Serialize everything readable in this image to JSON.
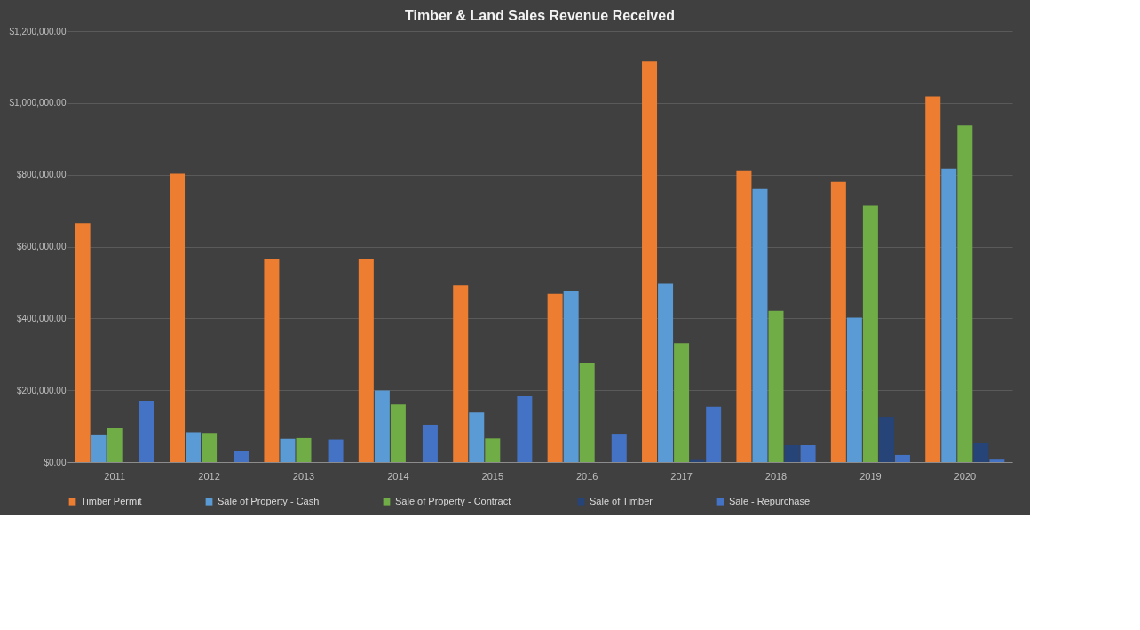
{
  "chart_data": {
    "type": "bar",
    "title": "Timber & Land Sales Revenue Received",
    "categories": [
      "2011",
      "2012",
      "2013",
      "2014",
      "2015",
      "2016",
      "2017",
      "2018",
      "2019",
      "2020"
    ],
    "series": [
      {
        "name": "Timber Permit",
        "color": "#ed7d31",
        "values": [
          665000,
          803000,
          566000,
          564000,
          492000,
          468000,
          1115000,
          812000,
          780000,
          1018000
        ]
      },
      {
        "name": "Sale of Property - Cash",
        "color": "#5b9bd5",
        "values": [
          77000,
          83000,
          65000,
          199000,
          138000,
          476000,
          496000,
          760000,
          402000,
          817000
        ]
      },
      {
        "name": "Sale of Property -  Contract",
        "color": "#70ad47",
        "values": [
          94000,
          81000,
          67000,
          160000,
          66000,
          277000,
          331000,
          421000,
          714000,
          937000
        ]
      },
      {
        "name": "Sale of Timber",
        "color": "#264478",
        "values": [
          null,
          null,
          0,
          null,
          null,
          0,
          6000,
          47000,
          126000,
          53000
        ]
      },
      {
        "name": "Sale - Repurchase",
        "color": "#4472c4",
        "values": [
          171000,
          32000,
          63000,
          104000,
          183000,
          79000,
          154000,
          47000,
          20000,
          7000
        ]
      }
    ],
    "ylim": [
      0,
      1200000
    ],
    "yticks": [
      {
        "value": 0,
        "label": "$0.00"
      },
      {
        "value": 200000,
        "label": "$200,000.00"
      },
      {
        "value": 400000,
        "label": "$400,000.00"
      },
      {
        "value": 600000,
        "label": "$600,000.00"
      },
      {
        "value": 800000,
        "label": "$800,000.00"
      },
      {
        "value": 1000000,
        "label": "$1,000,000.00"
      },
      {
        "value": 1200000,
        "label": "$1,200,000.00"
      }
    ],
    "grid": "y",
    "legend": "bottom"
  }
}
